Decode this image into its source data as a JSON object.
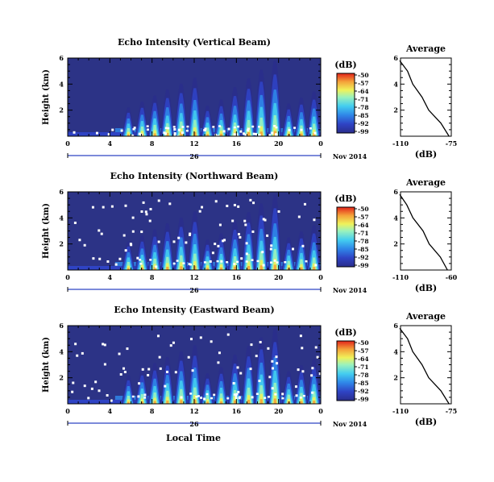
{
  "figure": {
    "x_axis_label": "Local Time",
    "date_label": "Nov 2014",
    "day_label": "26",
    "colorbar_unit": "(dB)",
    "average_title": "Average",
    "average_xlabel": "(dB)"
  },
  "chart_data": [
    {
      "type": "heatmap",
      "title": "Echo Intensity (Vertical Beam)",
      "ylabel": "Height (km)",
      "xlabel": "Local Time",
      "x_ticks": [
        "0",
        "4",
        "8",
        "12",
        "16",
        "20",
        "0"
      ],
      "y_ticks": [
        "2",
        "4",
        "6"
      ],
      "xlim": [
        0,
        24
      ],
      "ylim": [
        0,
        6
      ],
      "colorbar": {
        "unit": "(dB)",
        "ticks": [
          "-50",
          "-57",
          "-64",
          "-71",
          "-78",
          "-85",
          "-92",
          "-99"
        ]
      },
      "hotspots_hours": [
        5.8,
        7.1,
        8.3,
        9.5,
        10.8,
        12.1,
        13.3,
        14.6,
        15.9,
        17.2,
        18.4,
        19.7,
        21.0,
        22.2,
        23.4
      ],
      "average": {
        "title": "Average",
        "xlabel": "(dB)",
        "x_ticks": [
          "-110",
          "-75"
        ],
        "xlim": [
          -110,
          -75
        ],
        "y_ticks": [
          "2",
          "4",
          "6"
        ],
        "height_km": [
          0,
          1,
          2,
          3,
          4,
          5,
          5.8
        ],
        "db": [
          -76,
          -83,
          -90,
          -96,
          -101,
          -106,
          -110
        ]
      }
    },
    {
      "type": "heatmap",
      "title": "Echo Intensity (Northward Beam)",
      "ylabel": "Height (km)",
      "xlabel": "Local Time",
      "x_ticks": [
        "0",
        "4",
        "8",
        "12",
        "16",
        "20",
        "0"
      ],
      "y_ticks": [
        "2",
        "4",
        "6"
      ],
      "xlim": [
        0,
        24
      ],
      "ylim": [
        0,
        6
      ],
      "colorbar": {
        "unit": "(dB)",
        "ticks": [
          "-50",
          "-57",
          "-64",
          "-71",
          "-78",
          "-85",
          "-92",
          "-99"
        ]
      },
      "hotspots_hours": [
        5.8,
        7.1,
        8.3,
        9.5,
        10.8,
        12.1,
        13.3,
        14.6,
        15.9,
        17.2,
        18.4,
        19.7,
        21.0,
        22.2,
        23.4
      ],
      "average": {
        "title": "Average",
        "xlabel": "(dB)",
        "x_ticks": [
          "-110",
          "-60"
        ],
        "xlim": [
          -110,
          -60
        ],
        "y_ticks": [
          "2",
          "4",
          "6"
        ],
        "height_km": [
          0,
          1,
          2,
          3,
          4,
          5,
          5.8
        ],
        "db": [
          -63,
          -72,
          -81,
          -89,
          -97,
          -105,
          -110
        ]
      }
    },
    {
      "type": "heatmap",
      "title": "Echo Intensity (Eastward Beam)",
      "ylabel": "Height (km)",
      "xlabel": "Local Time",
      "x_ticks": [
        "0",
        "4",
        "8",
        "12",
        "16",
        "20",
        "0"
      ],
      "y_ticks": [
        "2",
        "4",
        "6"
      ],
      "xlim": [
        0,
        24
      ],
      "ylim": [
        0,
        6
      ],
      "colorbar": {
        "unit": "(dB)",
        "ticks": [
          "-50",
          "-57",
          "-64",
          "-71",
          "-78",
          "-85",
          "-92",
          "-99"
        ]
      },
      "hotspots_hours": [
        5.8,
        7.1,
        8.3,
        9.5,
        10.8,
        12.1,
        13.3,
        14.6,
        15.9,
        17.2,
        18.4,
        19.7,
        21.0,
        22.2,
        23.4
      ],
      "average": {
        "title": "Average",
        "xlabel": "(dB)",
        "x_ticks": [
          "-110",
          "-75"
        ],
        "xlim": [
          -110,
          -75
        ],
        "y_ticks": [
          "2",
          "4",
          "6"
        ],
        "height_km": [
          0,
          1,
          2,
          3,
          4,
          5,
          5.8
        ],
        "db": [
          -76,
          -83,
          -90,
          -96,
          -101,
          -106,
          -110
        ]
      }
    }
  ]
}
